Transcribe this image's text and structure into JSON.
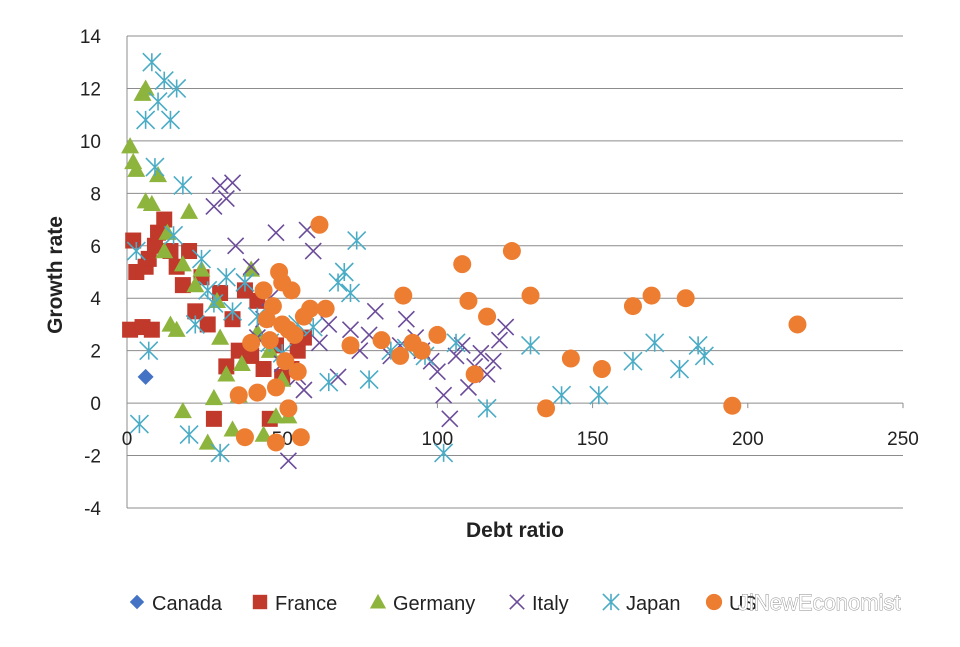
{
  "chart_data": {
    "type": "scatter",
    "title": "",
    "xlabel": "Debt ratio",
    "ylabel": "Growth rate",
    "xlim": [
      0,
      250
    ],
    "ylim": [
      -4,
      14
    ],
    "x_ticks": [
      "0",
      "50",
      "100",
      "150",
      "200",
      "250"
    ],
    "y_ticks": [
      "14",
      "12",
      "10",
      "8",
      "6",
      "4",
      "2",
      "0",
      "-2",
      "-4"
    ],
    "grid": "horizontal",
    "legend_position": "bottom",
    "series": [
      {
        "name": "Canada",
        "marker": "diamond",
        "color": "#4472c4",
        "points": [
          [
            6,
            1.0
          ]
        ]
      },
      {
        "name": "France",
        "marker": "square",
        "color": "#c0392b",
        "points": [
          [
            1,
            2.8
          ],
          [
            2,
            6.2
          ],
          [
            3,
            5.0
          ],
          [
            5,
            2.9
          ],
          [
            6,
            5.2
          ],
          [
            7,
            5.5
          ],
          [
            8,
            2.8
          ],
          [
            9,
            6.0
          ],
          [
            10,
            6.5
          ],
          [
            12,
            7.0
          ],
          [
            14,
            5.8
          ],
          [
            16,
            5.2
          ],
          [
            18,
            4.5
          ],
          [
            20,
            5.8
          ],
          [
            22,
            3.5
          ],
          [
            24,
            4.8
          ],
          [
            26,
            3.0
          ],
          [
            28,
            -0.6
          ],
          [
            30,
            4.2
          ],
          [
            32,
            1.4
          ],
          [
            34,
            3.2
          ],
          [
            36,
            2.0
          ],
          [
            38,
            4.3
          ],
          [
            40,
            1.8
          ],
          [
            42,
            3.9
          ],
          [
            44,
            1.3
          ],
          [
            46,
            -0.6
          ],
          [
            48,
            2.2
          ],
          [
            50,
            1.0
          ],
          [
            53,
            1.3
          ],
          [
            55,
            2.0
          ],
          [
            57,
            2.5
          ]
        ]
      },
      {
        "name": "Germany",
        "marker": "triangle",
        "color": "#8db43c",
        "points": [
          [
            1,
            9.8
          ],
          [
            2,
            9.2
          ],
          [
            3,
            8.9
          ],
          [
            5,
            11.8
          ],
          [
            6,
            12.0
          ],
          [
            6,
            7.7
          ],
          [
            8,
            7.6
          ],
          [
            10,
            8.7
          ],
          [
            12,
            5.8
          ],
          [
            13,
            6.5
          ],
          [
            14,
            3.0
          ],
          [
            16,
            2.8
          ],
          [
            18,
            5.3
          ],
          [
            18,
            -0.3
          ],
          [
            20,
            7.3
          ],
          [
            22,
            4.5
          ],
          [
            24,
            5.1
          ],
          [
            26,
            -1.5
          ],
          [
            28,
            0.2
          ],
          [
            29,
            3.9
          ],
          [
            30,
            2.5
          ],
          [
            32,
            1.1
          ],
          [
            34,
            -1.0
          ],
          [
            36,
            0.3
          ],
          [
            37,
            1.5
          ],
          [
            40,
            5.1
          ],
          [
            42,
            2.7
          ],
          [
            44,
            -1.2
          ],
          [
            46,
            2.0
          ],
          [
            48,
            -0.5
          ],
          [
            50,
            0.9
          ],
          [
            52,
            -0.5
          ]
        ]
      },
      {
        "name": "Italy",
        "marker": "x",
        "color": "#6b4c9a",
        "points": [
          [
            28,
            7.5
          ],
          [
            30,
            8.3
          ],
          [
            32,
            7.8
          ],
          [
            34,
            8.4
          ],
          [
            35,
            6.0
          ],
          [
            38,
            4.6
          ],
          [
            40,
            5.2
          ],
          [
            42,
            2.5
          ],
          [
            44,
            3.2
          ],
          [
            46,
            4.0
          ],
          [
            48,
            6.5
          ],
          [
            50,
            1.5
          ],
          [
            52,
            -2.2
          ],
          [
            55,
            1.0
          ],
          [
            57,
            0.5
          ],
          [
            58,
            6.6
          ],
          [
            60,
            5.8
          ],
          [
            62,
            2.3
          ],
          [
            65,
            3.0
          ],
          [
            68,
            1.0
          ],
          [
            72,
            2.8
          ],
          [
            75,
            2.0
          ],
          [
            78,
            2.6
          ],
          [
            80,
            3.5
          ],
          [
            85,
            1.8
          ],
          [
            88,
            2.2
          ],
          [
            90,
            3.2
          ],
          [
            93,
            2.5
          ],
          [
            95,
            2.0
          ],
          [
            98,
            1.6
          ],
          [
            100,
            1.2
          ],
          [
            102,
            0.3
          ],
          [
            104,
            -0.6
          ],
          [
            106,
            1.8
          ],
          [
            108,
            2.2
          ],
          [
            110,
            0.6
          ],
          [
            112,
            1.4
          ],
          [
            114,
            1.9
          ],
          [
            116,
            1.1
          ],
          [
            118,
            1.6
          ],
          [
            120,
            2.4
          ],
          [
            122,
            2.9
          ]
        ]
      },
      {
        "name": "Japan",
        "marker": "asterisk",
        "color": "#4bacc6",
        "points": [
          [
            3,
            5.8
          ],
          [
            4,
            -0.8
          ],
          [
            6,
            10.8
          ],
          [
            7,
            2.0
          ],
          [
            8,
            13.0
          ],
          [
            9,
            9.0
          ],
          [
            10,
            11.5
          ],
          [
            12,
            12.3
          ],
          [
            14,
            10.8
          ],
          [
            15,
            6.4
          ],
          [
            16,
            12.0
          ],
          [
            18,
            8.3
          ],
          [
            20,
            -1.2
          ],
          [
            22,
            3.0
          ],
          [
            24,
            5.5
          ],
          [
            26,
            4.3
          ],
          [
            28,
            3.8
          ],
          [
            30,
            -1.9
          ],
          [
            32,
            4.8
          ],
          [
            34,
            3.5
          ],
          [
            38,
            4.6
          ],
          [
            42,
            3.3
          ],
          [
            46,
            2.3
          ],
          [
            50,
            1.9
          ],
          [
            55,
            3.0
          ],
          [
            60,
            2.9
          ],
          [
            65,
            0.8
          ],
          [
            68,
            4.6
          ],
          [
            70,
            5.0
          ],
          [
            72,
            4.2
          ],
          [
            74,
            6.2
          ],
          [
            78,
            0.9
          ],
          [
            85,
            2.0
          ],
          [
            90,
            2.1
          ],
          [
            96,
            1.8
          ],
          [
            102,
            -1.9
          ],
          [
            106,
            2.3
          ],
          [
            116,
            -0.2
          ],
          [
            130,
            2.2
          ],
          [
            140,
            0.3
          ],
          [
            152,
            0.3
          ],
          [
            163,
            1.6
          ],
          [
            170,
            2.3
          ],
          [
            178,
            1.3
          ],
          [
            184,
            2.2
          ],
          [
            186,
            1.8
          ]
        ]
      },
      {
        "name": "US",
        "marker": "circle",
        "color": "#ed7d31",
        "points": [
          [
            36,
            0.3
          ],
          [
            38,
            -1.3
          ],
          [
            40,
            2.3
          ],
          [
            42,
            0.4
          ],
          [
            44,
            4.3
          ],
          [
            45,
            3.2
          ],
          [
            46,
            2.4
          ],
          [
            47,
            3.7
          ],
          [
            48,
            0.6
          ],
          [
            48,
            -1.5
          ],
          [
            49,
            5.0
          ],
          [
            50,
            3.0
          ],
          [
            50,
            4.6
          ],
          [
            51,
            1.6
          ],
          [
            52,
            2.8
          ],
          [
            52,
            -0.2
          ],
          [
            53,
            4.3
          ],
          [
            54,
            2.6
          ],
          [
            55,
            1.2
          ],
          [
            56,
            -1.3
          ],
          [
            57,
            3.3
          ],
          [
            59,
            3.6
          ],
          [
            62,
            6.8
          ],
          [
            64,
            3.6
          ],
          [
            72,
            2.2
          ],
          [
            82,
            2.4
          ],
          [
            88,
            1.8
          ],
          [
            89,
            4.1
          ],
          [
            92,
            2.3
          ],
          [
            95,
            2.0
          ],
          [
            100,
            2.6
          ],
          [
            108,
            5.3
          ],
          [
            110,
            3.9
          ],
          [
            112,
            1.1
          ],
          [
            116,
            3.3
          ],
          [
            124,
            5.8
          ],
          [
            130,
            4.1
          ],
          [
            135,
            -0.2
          ],
          [
            143,
            1.7
          ],
          [
            153,
            1.3
          ],
          [
            163,
            3.7
          ],
          [
            169,
            4.1
          ],
          [
            180,
            4.0
          ],
          [
            195,
            -0.1
          ],
          [
            216,
            3.0
          ]
        ]
      }
    ]
  },
  "watermark": {
    "logo_text": "JiNewEconomist"
  }
}
